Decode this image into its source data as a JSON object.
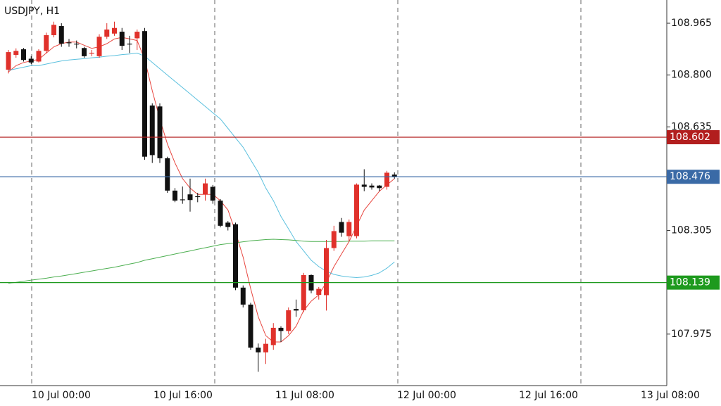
{
  "chart_data": {
    "type": "candlestick",
    "title": "USDJPY, H1",
    "up_color": "#e0312b",
    "down_color": "#111111",
    "open": [
      108.817,
      108.864,
      108.882,
      108.852,
      108.843,
      108.877,
      108.927,
      108.956,
      108.904,
      108.9,
      108.886,
      108.87,
      108.86,
      108.922,
      108.932,
      108.938,
      108.9,
      108.917,
      108.94,
      108.703,
      108.7,
      108.535,
      108.432,
      108.404,
      108.42,
      108.414,
      108.42,
      108.444,
      108.4,
      108.33,
      108.325,
      108.123,
      108.069,
      107.932,
      107.917,
      107.94,
      107.995,
      107.985,
      108.055,
      108.051,
      108.163,
      108.1,
      108.099,
      108.249,
      108.332,
      108.287,
      108.287,
      108.451,
      108.448,
      108.448,
      108.444,
      108.483
    ],
    "high": [
      108.88,
      108.885,
      108.886,
      108.86,
      108.882,
      108.935,
      108.97,
      108.965,
      108.915,
      108.91,
      108.89,
      108.88,
      108.93,
      108.965,
      108.97,
      108.95,
      108.925,
      108.945,
      108.95,
      108.71,
      108.71,
      108.54,
      108.44,
      108.445,
      108.47,
      108.425,
      108.47,
      108.45,
      108.405,
      108.335,
      108.33,
      108.13,
      108.075,
      107.945,
      107.96,
      108.01,
      108.0,
      108.06,
      108.085,
      108.17,
      108.165,
      108.125,
      108.275,
      108.32,
      108.345,
      108.34,
      108.455,
      108.5,
      108.455,
      108.45,
      108.495,
      108.49
    ],
    "low": [
      108.805,
      108.855,
      108.843,
      108.835,
      108.84,
      108.87,
      108.92,
      108.89,
      108.89,
      108.885,
      108.855,
      108.86,
      108.855,
      108.915,
      108.925,
      108.88,
      108.87,
      108.88,
      108.53,
      108.52,
      108.52,
      108.425,
      108.395,
      108.39,
      108.365,
      108.395,
      108.4,
      108.39,
      108.315,
      108.305,
      108.115,
      108.06,
      107.925,
      107.855,
      107.88,
      107.925,
      107.95,
      107.975,
      108.03,
      108.045,
      108.105,
      108.085,
      108.05,
      108.24,
      108.285,
      108.27,
      108.28,
      108.43,
      108.435,
      108.43,
      108.435,
      108.47
    ],
    "close": [
      108.873,
      108.877,
      108.848,
      108.84,
      108.877,
      108.927,
      108.96,
      108.9,
      108.902,
      108.898,
      108.86,
      108.871,
      108.922,
      108.945,
      108.95,
      108.893,
      108.899,
      108.938,
      108.54,
      108.545,
      108.535,
      108.432,
      108.4,
      108.402,
      108.402,
      108.413,
      108.455,
      108.4,
      108.32,
      108.316,
      108.123,
      108.069,
      107.932,
      107.917,
      107.944,
      107.995,
      107.985,
      108.051,
      108.05,
      108.163,
      108.114,
      108.119,
      108.249,
      108.303,
      108.298,
      108.332,
      108.451,
      108.444,
      108.442,
      108.44,
      108.489,
      108.476
    ],
    "series": [
      {
        "color": "#e8463f",
        "values": [
          108.81,
          108.83,
          108.84,
          108.845,
          108.85,
          108.87,
          108.89,
          108.9,
          108.905,
          108.905,
          108.895,
          108.885,
          108.89,
          108.9,
          108.915,
          108.92,
          108.915,
          108.91,
          108.85,
          108.75,
          108.66,
          108.58,
          108.52,
          108.47,
          108.44,
          108.42,
          108.42,
          108.42,
          108.4,
          108.37,
          108.3,
          108.22,
          108.12,
          108.03,
          107.97,
          107.95,
          107.95,
          107.97,
          108.0,
          108.05,
          108.08,
          108.1,
          108.14,
          108.19,
          108.23,
          108.27,
          108.32,
          108.37,
          108.4,
          108.43,
          108.45,
          108.47
        ]
      },
      {
        "color": "#5bc0de",
        "values": [
          108.815,
          108.82,
          108.825,
          108.83,
          108.83,
          108.835,
          108.84,
          108.845,
          108.848,
          108.85,
          108.852,
          108.855,
          108.857,
          108.86,
          108.862,
          108.865,
          108.867,
          108.87,
          108.86,
          108.84,
          108.82,
          108.8,
          108.78,
          108.76,
          108.74,
          108.72,
          108.7,
          108.68,
          108.66,
          108.63,
          108.6,
          108.57,
          108.53,
          108.49,
          108.44,
          108.4,
          108.35,
          108.31,
          108.27,
          108.24,
          108.21,
          108.19,
          108.175,
          108.165,
          108.16,
          108.157,
          108.155,
          108.157,
          108.162,
          108.17,
          108.185,
          108.205
        ]
      },
      {
        "color": "#4caf50",
        "values": [
          108.137,
          108.14,
          108.143,
          108.147,
          108.15,
          108.153,
          108.157,
          108.16,
          108.164,
          108.168,
          108.172,
          108.176,
          108.18,
          108.184,
          108.188,
          108.193,
          108.198,
          108.203,
          108.21,
          108.215,
          108.22,
          108.225,
          108.23,
          108.235,
          108.24,
          108.245,
          108.25,
          108.255,
          108.26,
          108.263,
          108.266,
          108.269,
          108.272,
          108.274,
          108.276,
          108.277,
          108.276,
          108.275,
          108.273,
          108.271,
          108.27,
          108.27,
          108.27,
          108.27,
          108.27,
          108.271,
          108.271,
          108.271,
          108.272,
          108.272,
          108.272,
          108.272
        ]
      }
    ],
    "levels": [
      {
        "value": 108.602,
        "color": "#b21e1e"
      },
      {
        "value": 108.476,
        "color": "#3a6aa6"
      },
      {
        "value": 108.139,
        "color": "#1e9a1e"
      }
    ],
    "ylim": [
      107.811,
      109.039
    ],
    "yticks": [
      108.965,
      {
        "value": 108.8,
        "label": "108.800"
      },
      108.635,
      108.305,
      107.975
    ],
    "xtick_labels": [
      "10 Jul 00:00",
      "10 Jul 16:00",
      "11 Jul 08:00",
      "12 Jul 00:00",
      "12 Jul 16:00",
      "13 Jul 08:00"
    ]
  }
}
